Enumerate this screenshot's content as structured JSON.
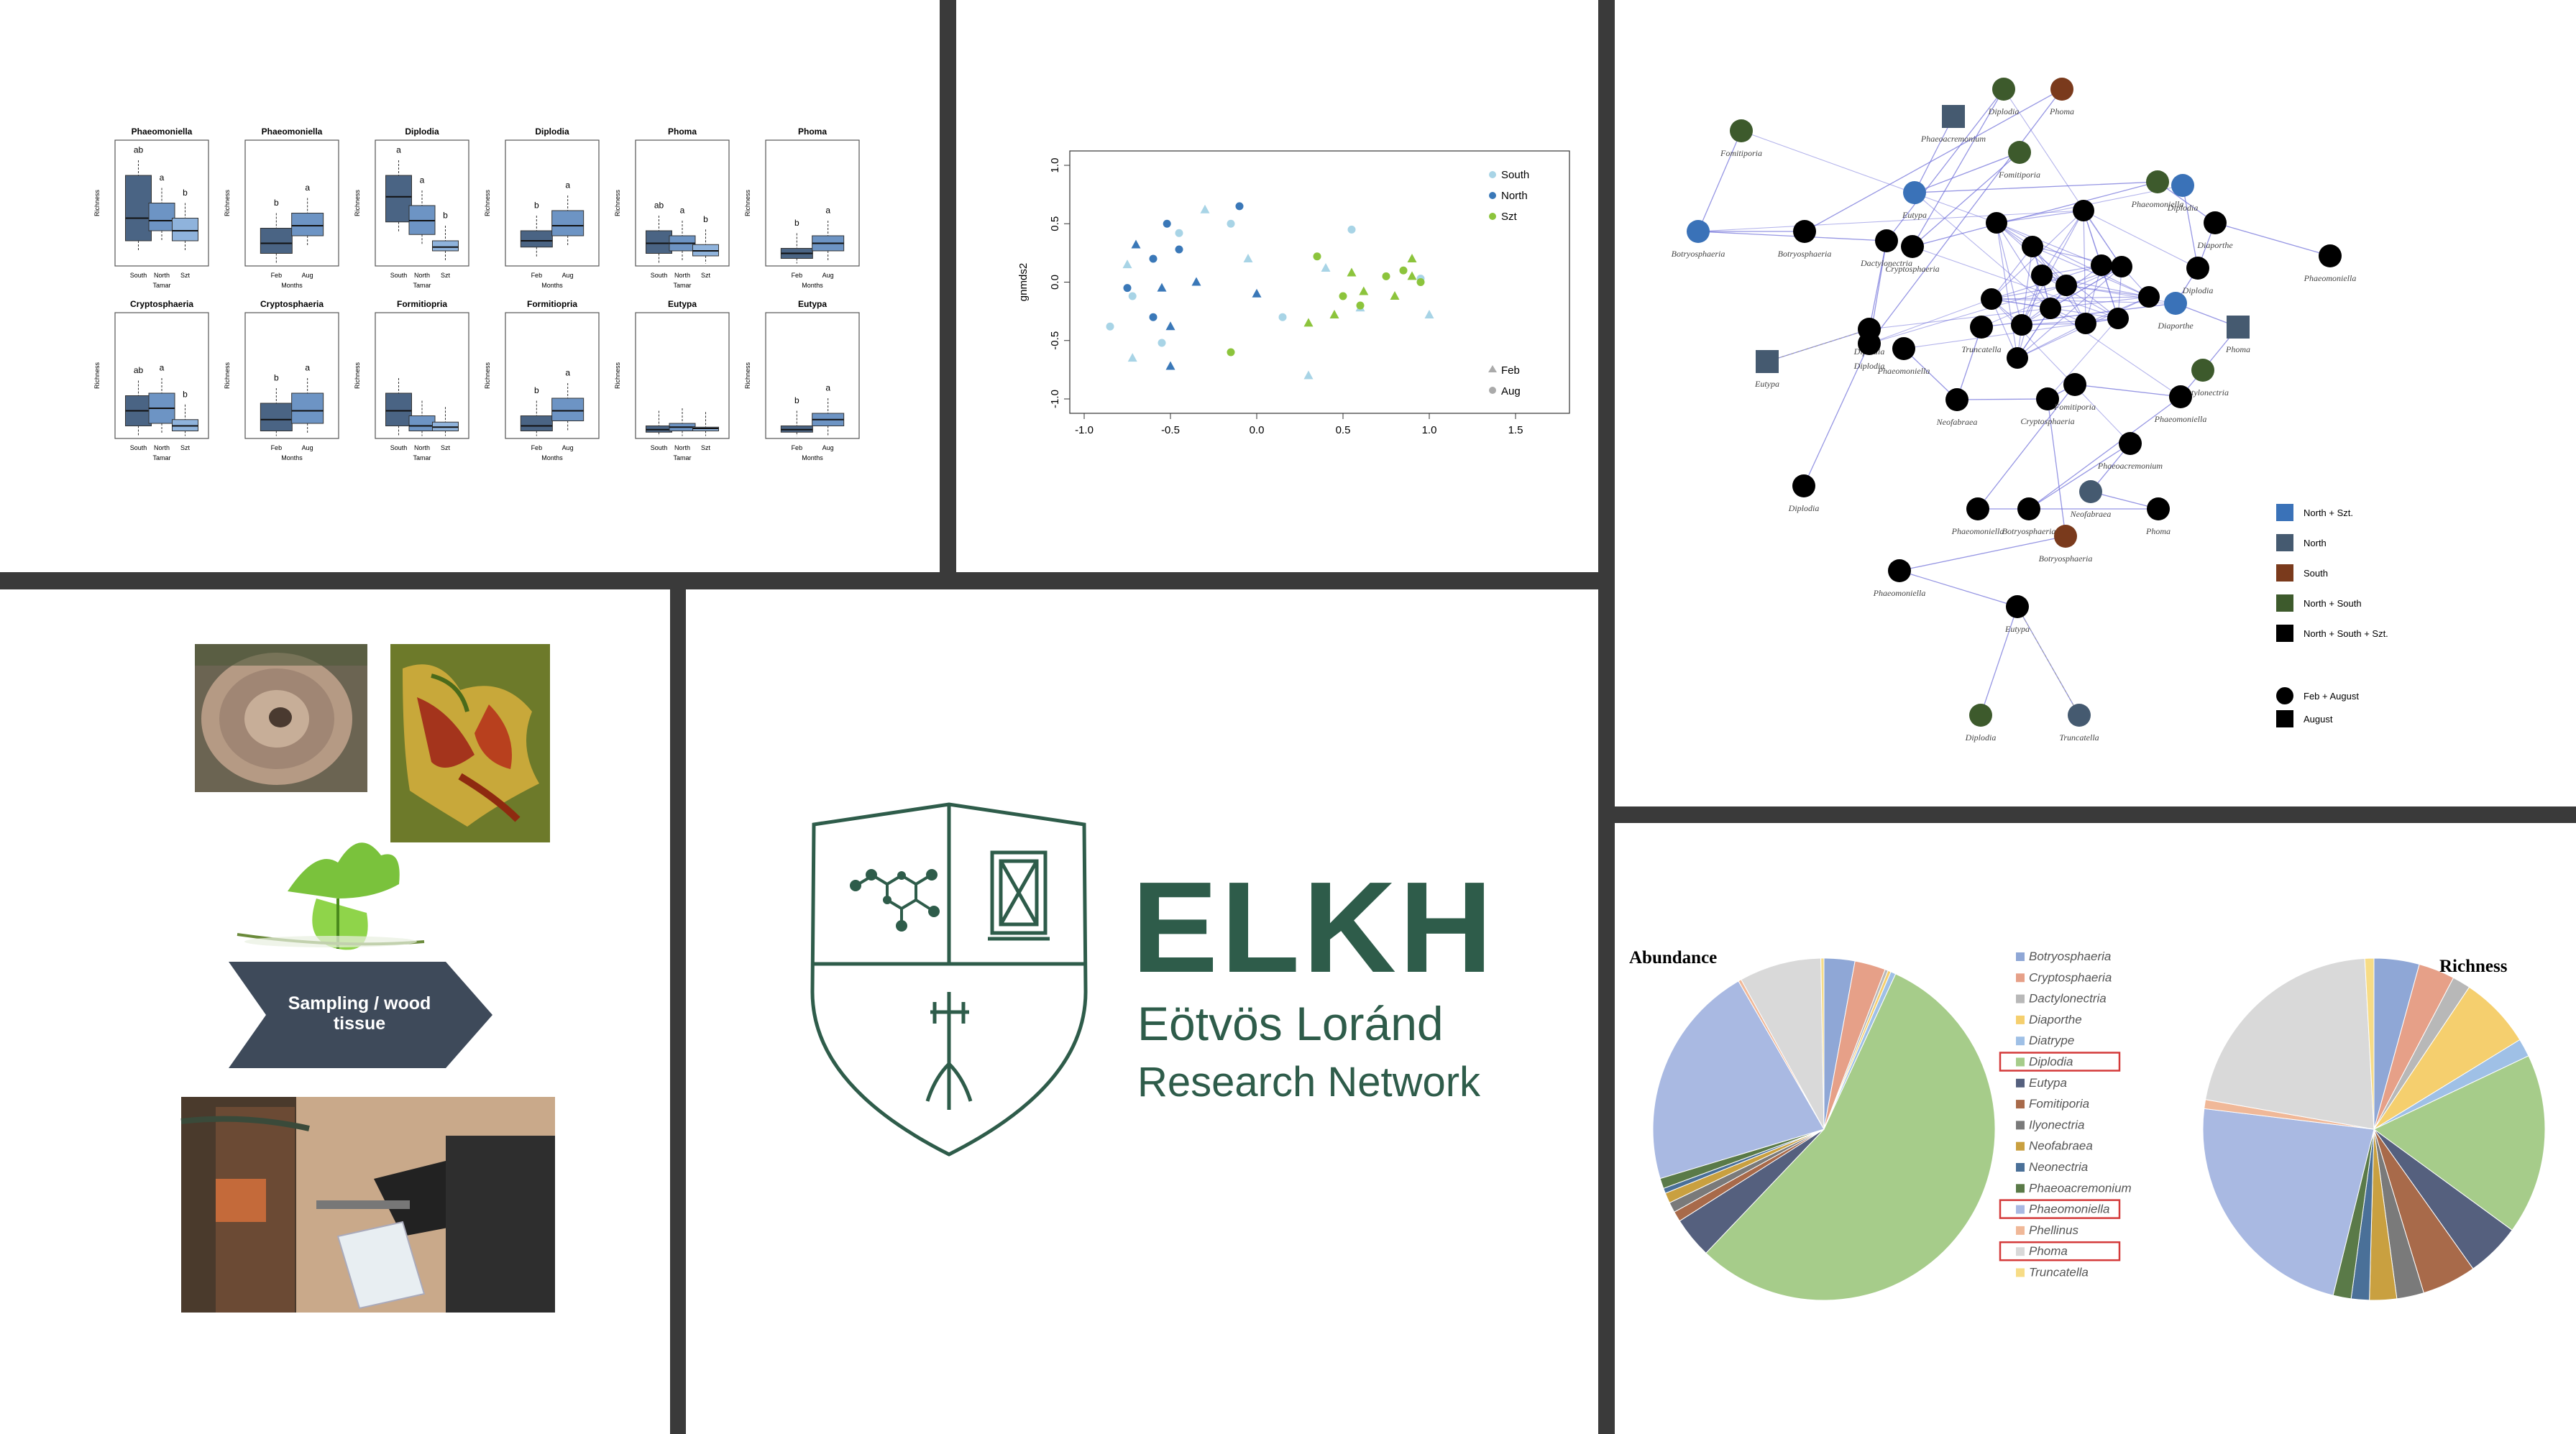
{
  "boxplots": {
    "y_label": "Richness",
    "plots": [
      {
        "title": "Phaeomoniella",
        "xlabel": "Tamar",
        "cats": [
          "South",
          "North",
          "Szt"
        ],
        "letters": [
          "ab",
          "a",
          "b"
        ],
        "color": "#4a6484",
        "q": [
          [
            0.2,
            0.38,
            0.72
          ],
          [
            0.28,
            0.36,
            0.5
          ],
          [
            0.2,
            0.28,
            0.38
          ]
        ]
      },
      {
        "title": "Phaeomoniella",
        "xlabel": "Months",
        "cats": [
          "Feb",
          "Aug"
        ],
        "letters": [
          "b",
          "a"
        ],
        "color": "#4a6484",
        "q": [
          [
            0.1,
            0.18,
            0.3
          ],
          [
            0.24,
            0.32,
            0.42
          ]
        ]
      },
      {
        "title": "Diplodia",
        "xlabel": "Tamar",
        "cats": [
          "South",
          "North",
          "Szt"
        ],
        "letters": [
          "a",
          "a",
          "b"
        ],
        "color": "#4a6484",
        "q": [
          [
            0.35,
            0.55,
            0.72
          ],
          [
            0.25,
            0.36,
            0.48
          ],
          [
            0.12,
            0.15,
            0.2
          ]
        ]
      },
      {
        "title": "Diplodia",
        "xlabel": "Months",
        "cats": [
          "Feb",
          "Aug"
        ],
        "letters": [
          "b",
          "a"
        ],
        "color": "#4a6484",
        "q": [
          [
            0.15,
            0.2,
            0.28
          ],
          [
            0.24,
            0.32,
            0.44
          ]
        ]
      },
      {
        "title": "Phoma",
        "xlabel": "Tamar",
        "cats": [
          "South",
          "North",
          "Szt"
        ],
        "letters": [
          "ab",
          "a",
          "b"
        ],
        "color": "#4a6484",
        "q": [
          [
            0.1,
            0.18,
            0.28
          ],
          [
            0.12,
            0.18,
            0.24
          ],
          [
            0.08,
            0.12,
            0.17
          ]
        ]
      },
      {
        "title": "Phoma",
        "xlabel": "Months",
        "cats": [
          "Feb",
          "Aug"
        ],
        "letters": [
          "b",
          "a"
        ],
        "color": "#4a6484",
        "q": [
          [
            0.06,
            0.1,
            0.14
          ],
          [
            0.12,
            0.18,
            0.24
          ]
        ]
      },
      {
        "title": "Cryptosphaeria",
        "xlabel": "Tamar",
        "cats": [
          "South",
          "North",
          "Szt"
        ],
        "letters": [
          "ab",
          "a",
          "b"
        ],
        "color": "#4a6484",
        "q": [
          [
            0.1,
            0.22,
            0.34
          ],
          [
            0.12,
            0.24,
            0.36
          ],
          [
            0.06,
            0.1,
            0.15
          ]
        ]
      },
      {
        "title": "Cryptosphaeria",
        "xlabel": "Months",
        "cats": [
          "Feb",
          "Aug"
        ],
        "letters": [
          "b",
          "a"
        ],
        "color": "#4a6484",
        "q": [
          [
            0.06,
            0.15,
            0.28
          ],
          [
            0.12,
            0.22,
            0.36
          ]
        ]
      },
      {
        "title": "Formitiopria",
        "xlabel": "Tamar",
        "cats": [
          "South",
          "North",
          "Szt"
        ],
        "letters": [
          "",
          "",
          ""
        ],
        "color": "#4a6484",
        "q": [
          [
            0.1,
            0.22,
            0.36
          ],
          [
            0.06,
            0.1,
            0.18
          ],
          [
            0.06,
            0.09,
            0.13
          ]
        ]
      },
      {
        "title": "Formitiopria",
        "xlabel": "Months",
        "cats": [
          "Feb",
          "Aug"
        ],
        "letters": [
          "b",
          "a"
        ],
        "color": "#4a6484",
        "q": [
          [
            0.06,
            0.1,
            0.18
          ],
          [
            0.14,
            0.22,
            0.32
          ]
        ]
      },
      {
        "title": "Eutypa",
        "xlabel": "Tamar",
        "cats": [
          "South",
          "North",
          "Szt"
        ],
        "letters": [
          "",
          "",
          ""
        ],
        "color": "#4a6484",
        "q": [
          [
            0.05,
            0.07,
            0.1
          ],
          [
            0.06,
            0.09,
            0.12
          ],
          [
            0.06,
            0.08,
            0.09
          ]
        ]
      },
      {
        "title": "Eutypa",
        "xlabel": "Months",
        "cats": [
          "Feb",
          "Aug"
        ],
        "letters": [
          "b",
          "a"
        ],
        "color": "#4a6484",
        "q": [
          [
            0.05,
            0.07,
            0.1
          ],
          [
            0.1,
            0.15,
            0.2
          ]
        ]
      }
    ]
  },
  "nmds": {
    "ylabel": "gnmds2",
    "xticks": [
      "-1.0",
      "-0.5",
      "0.0",
      "0.5",
      "1.0",
      "1.5"
    ],
    "yticks": [
      "1.0",
      "0.5",
      "0.0",
      "-0.5",
      "-1.0"
    ],
    "legend_sites": [
      {
        "label": "South",
        "color": "#a8d4e6"
      },
      {
        "label": "North",
        "color": "#3a78b8"
      },
      {
        "label": "Szt",
        "color": "#8cc43c"
      }
    ],
    "legend_months": [
      {
        "label": "Feb",
        "shape": "triangle"
      },
      {
        "label": "Aug",
        "shape": "circle"
      }
    ]
  },
  "chart_data": {
    "type": "scatter",
    "xlim": [
      -1.0,
      1.5
    ],
    "ylim": [
      -1.0,
      1.0
    ],
    "xlabel": "",
    "ylabel": "gnmds2",
    "series": [
      {
        "name": "South",
        "color": "#a8d4e6",
        "points": [
          [
            -0.85,
            -0.38
          ],
          [
            -0.75,
            0.15
          ],
          [
            -0.72,
            -0.12
          ],
          [
            -0.72,
            -0.65
          ],
          [
            -0.55,
            -0.52
          ],
          [
            -0.3,
            0.62
          ],
          [
            -0.15,
            0.5
          ],
          [
            -0.05,
            0.2
          ],
          [
            0.15,
            -0.3
          ],
          [
            0.3,
            -0.8
          ],
          [
            0.55,
            0.45
          ],
          [
            0.6,
            -0.22
          ],
          [
            0.95,
            0.03
          ],
          [
            1.0,
            -0.28
          ],
          [
            -0.45,
            0.42
          ],
          [
            0.4,
            0.12
          ]
        ]
      },
      {
        "name": "North",
        "color": "#3a78b8",
        "points": [
          [
            -0.75,
            -0.05
          ],
          [
            -0.7,
            0.32
          ],
          [
            -0.6,
            0.2
          ],
          [
            -0.55,
            -0.05
          ],
          [
            -0.52,
            0.5
          ],
          [
            -0.5,
            -0.38
          ],
          [
            -0.45,
            0.28
          ],
          [
            -0.35,
            0.0
          ],
          [
            -0.1,
            0.65
          ],
          [
            0.0,
            -0.1
          ],
          [
            -0.6,
            -0.3
          ],
          [
            -0.5,
            -0.72
          ]
        ]
      },
      {
        "name": "Szt",
        "color": "#8cc43c",
        "points": [
          [
            -0.15,
            -0.6
          ],
          [
            0.3,
            -0.35
          ],
          [
            0.35,
            0.22
          ],
          [
            0.45,
            -0.28
          ],
          [
            0.5,
            -0.12
          ],
          [
            0.55,
            0.08
          ],
          [
            0.6,
            -0.2
          ],
          [
            0.62,
            -0.08
          ],
          [
            0.75,
            0.05
          ],
          [
            0.8,
            -0.12
          ],
          [
            0.85,
            0.1
          ],
          [
            0.9,
            0.05
          ],
          [
            0.95,
            0.0
          ],
          [
            0.9,
            0.2
          ]
        ]
      }
    ]
  },
  "network": {
    "nodes": [
      {
        "id": "n1",
        "label": "Fomitiporia",
        "color": "#3d5a2c",
        "shape": "circle"
      },
      {
        "id": "n2",
        "label": "Botryosphaeria",
        "color": "#3a72b8",
        "shape": "circle"
      },
      {
        "id": "n3",
        "label": "Botryosphaeria",
        "color": "#000000",
        "shape": "circle"
      },
      {
        "id": "n4",
        "label": "Eutypa",
        "color": "#455a70",
        "shape": "square"
      },
      {
        "id": "n5",
        "label": "Diplodia",
        "color": "#000000",
        "shape": "circle"
      },
      {
        "id": "n6",
        "label": "Dactylonectria",
        "color": "#000000",
        "shape": "circle"
      },
      {
        "id": "n7",
        "label": "Diplodia",
        "color": "#000000",
        "shape": "circle"
      },
      {
        "id": "n8",
        "label": "Phaeomoniella",
        "color": "#000000",
        "shape": "circle"
      },
      {
        "id": "n9",
        "label": "Phaeoacremonium",
        "color": "#455a70",
        "shape": "square"
      },
      {
        "id": "n10",
        "label": "Diplodia",
        "color": "#3d5a2c",
        "shape": "circle"
      },
      {
        "id": "n11",
        "label": "Phoma",
        "color": "#7a3a1c",
        "shape": "circle"
      },
      {
        "id": "n12",
        "label": "Fomitiporia",
        "color": "#3d5a2c",
        "shape": "circle"
      },
      {
        "id": "n13",
        "label": "Eutypa",
        "color": "#3a72b8",
        "shape": "circle"
      },
      {
        "id": "n14",
        "label": "Cryptosphaeria",
        "color": "#000000",
        "shape": "circle"
      },
      {
        "id": "n15",
        "label": "Phaeomoniella",
        "color": "#3d5a2c",
        "shape": "circle"
      },
      {
        "id": "n16",
        "label": "Diplodia",
        "color": "#3a72b8",
        "shape": "circle"
      },
      {
        "id": "n17",
        "label": "Diaporthe",
        "color": "#000000",
        "shape": "circle"
      },
      {
        "id": "n18",
        "label": "Diplodia",
        "color": "#000000",
        "shape": "circle"
      },
      {
        "id": "n19",
        "label": "Phaeomoniella",
        "color": "#000000",
        "shape": "circle"
      },
      {
        "id": "n20",
        "label": "Diaporthe",
        "color": "#3a72b8",
        "shape": "circle"
      },
      {
        "id": "n21",
        "label": "Phoma",
        "color": "#455a70",
        "shape": "square"
      },
      {
        "id": "n22",
        "label": "Truncatella",
        "color": "#000000",
        "shape": "circle"
      },
      {
        "id": "n23",
        "label": "Dactylonectria",
        "color": "#3d5a2c",
        "shape": "circle"
      },
      {
        "id": "n24",
        "label": "Neofabraea",
        "color": "#000000",
        "shape": "circle"
      },
      {
        "id": "n25",
        "label": "Cryptosphaeria",
        "color": "#000000",
        "shape": "circle"
      },
      {
        "id": "n26",
        "label": "Fomitiporia",
        "color": "#000000",
        "shape": "circle"
      },
      {
        "id": "n27",
        "label": "Phaeomoniella",
        "color": "#000000",
        "shape": "circle"
      },
      {
        "id": "n28",
        "label": "Botryosphaeria",
        "color": "#000000",
        "shape": "circle"
      },
      {
        "id": "n29",
        "label": "Phaeoacremonium",
        "color": "#000000",
        "shape": "circle"
      },
      {
        "id": "n30",
        "label": "Neofabraea",
        "color": "#455a70",
        "shape": "circle"
      },
      {
        "id": "n31",
        "label": "Phoma",
        "color": "#000000",
        "shape": "circle"
      },
      {
        "id": "n32",
        "label": "Phaeomoniella",
        "color": "#000000",
        "shape": "circle"
      },
      {
        "id": "n33",
        "label": "Botryosphaeria",
        "color": "#7a3a1c",
        "shape": "circle"
      },
      {
        "id": "n34",
        "label": "Phaeomoniella",
        "color": "#000000",
        "shape": "circle"
      },
      {
        "id": "n35",
        "label": "Eutypa",
        "color": "#000000",
        "shape": "circle"
      },
      {
        "id": "n36",
        "label": "Diplodia",
        "color": "#3d5a2c",
        "shape": "circle"
      },
      {
        "id": "n37",
        "label": "Truncatella",
        "color": "#455a70",
        "shape": "circle"
      },
      {
        "id": "n38",
        "label": "Diplodia",
        "color": "#000000",
        "shape": "circle"
      }
    ],
    "legend_colors": [
      {
        "label": "North + Szt.",
        "color": "#3a72b8"
      },
      {
        "label": "North",
        "color": "#455a70"
      },
      {
        "label": "South",
        "color": "#7a3a1c"
      },
      {
        "label": "North + South",
        "color": "#3d5a2c"
      },
      {
        "label": "North + South + Szt.",
        "color": "#000000"
      }
    ],
    "legend_shapes": [
      {
        "label": "Feb + August",
        "shape": "circle"
      },
      {
        "label": "August",
        "shape": "square"
      }
    ]
  },
  "photos": {
    "arrow_label_line1": "Sampling / wood",
    "arrow_label_line2": "tissue"
  },
  "logo": {
    "acronym": "ELKH",
    "name_line1": "Eötvös Loránd",
    "name_line2": "Research Network",
    "color": "#2e5c4a"
  },
  "pies": {
    "abundance_title": "Abundance",
    "richness_title": "Richness",
    "legend": [
      {
        "label": "Botryosphaeria",
        "color": "#8fa7d6",
        "highlight": false
      },
      {
        "label": "Cryptosphaeria",
        "color": "#e6a088",
        "highlight": false
      },
      {
        "label": "Dactylonectria",
        "color": "#b8b8b8",
        "highlight": false
      },
      {
        "label": "Diaporthe",
        "color": "#f5cf6e",
        "highlight": false
      },
      {
        "label": "Diatrype",
        "color": "#9fc0e6",
        "highlight": false
      },
      {
        "label": "Diplodia",
        "color": "#a6cc8a",
        "highlight": true
      },
      {
        "label": "Eutypa",
        "color": "#55607e",
        "highlight": false
      },
      {
        "label": "Fomitiporia",
        "color": "#a86a4a",
        "highlight": false
      },
      {
        "label": "Ilyonectria",
        "color": "#7a7a7a",
        "highlight": false
      },
      {
        "label": "Neofabraea",
        "color": "#c9a040",
        "highlight": false
      },
      {
        "label": "Neonectria",
        "color": "#4a7098",
        "highlight": false
      },
      {
        "label": "Phaeoacremonium",
        "color": "#5a7a48",
        "highlight": false
      },
      {
        "label": "Phaeomoniella",
        "color": "#a9b9e2",
        "highlight": true
      },
      {
        "label": "Phellinus",
        "color": "#f0b898",
        "highlight": false
      },
      {
        "label": "Phoma",
        "color": "#d9d9d9",
        "highlight": true
      },
      {
        "label": "Truncatella",
        "color": "#f7dc86",
        "highlight": false
      }
    ],
    "abundance": [
      3,
      3,
      0.3,
      0.3,
      0.5,
      57,
      4,
      1,
      1,
      1,
      0.5,
      1,
      22,
      0.3,
      8,
      0.3
    ],
    "richness": [
      5,
      4,
      2,
      8,
      2,
      20,
      6,
      6,
      3,
      3,
      2,
      2,
      27,
      1,
      25,
      1
    ]
  }
}
